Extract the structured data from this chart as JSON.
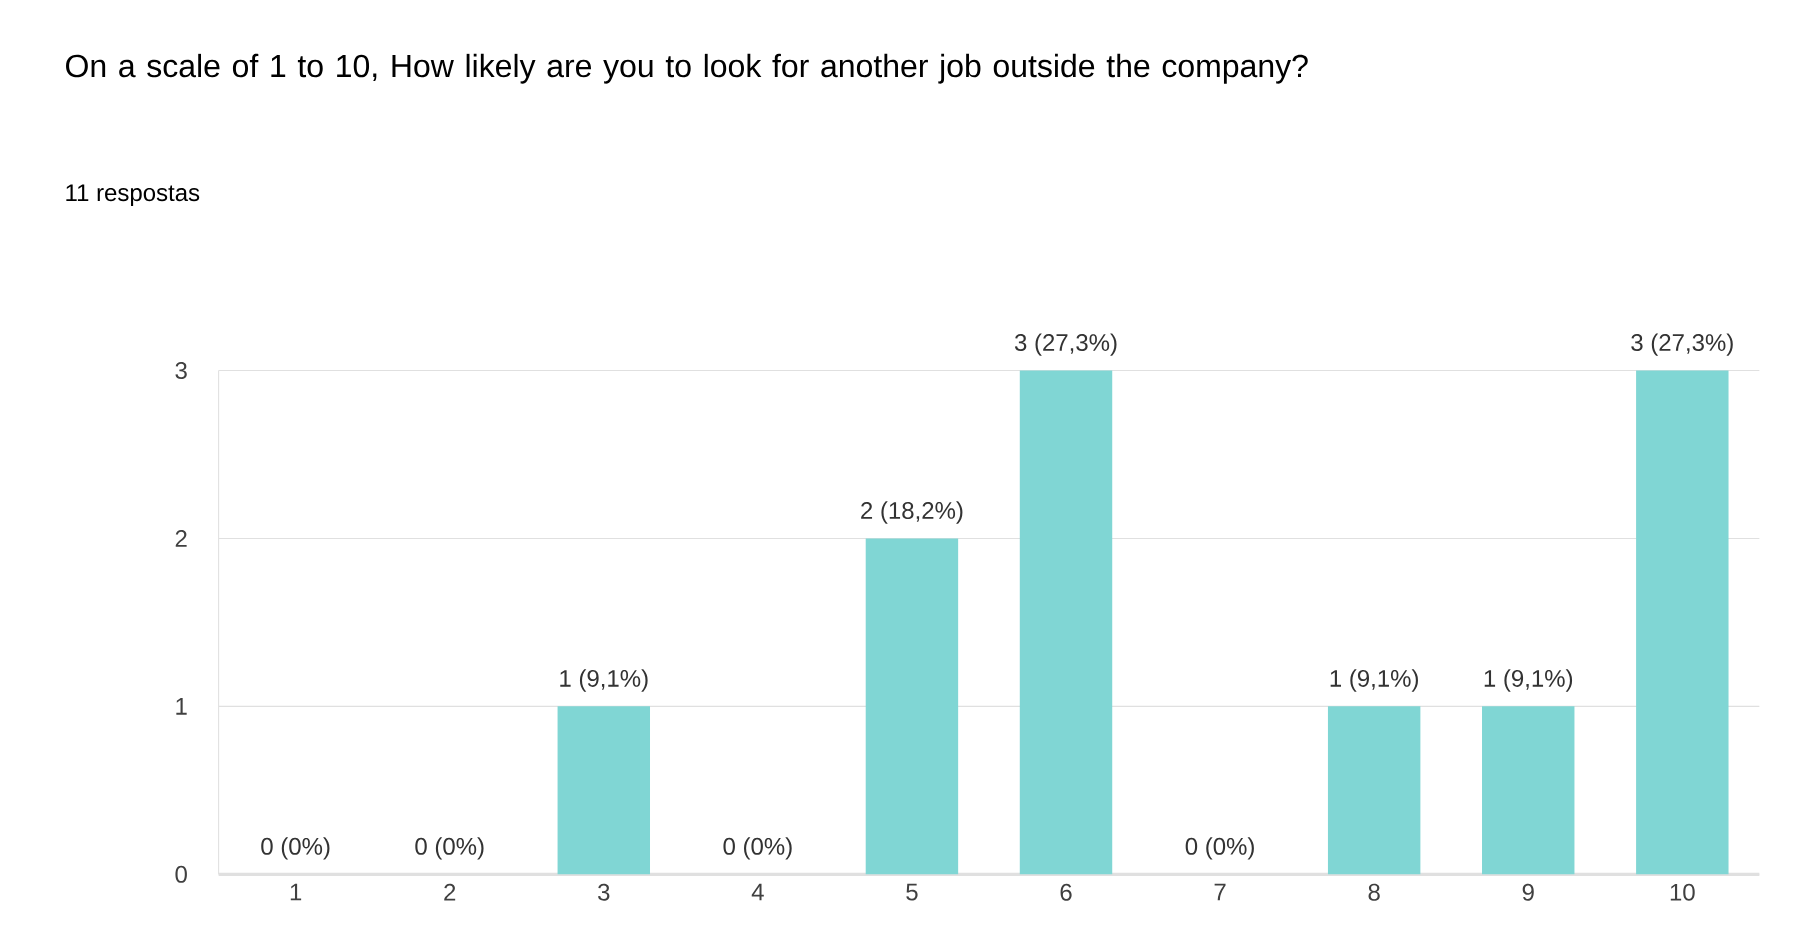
{
  "chart_data": {
    "type": "bar",
    "title": "On a scale of 1 to 10, How likely are you to look for another job outside the company?",
    "subtitle": "11 respostas",
    "categories": [
      "1",
      "2",
      "3",
      "4",
      "5",
      "6",
      "7",
      "8",
      "9",
      "10"
    ],
    "values": [
      0,
      0,
      1,
      0,
      2,
      3,
      0,
      1,
      1,
      3
    ],
    "value_labels": [
      "0 (0%)",
      "0 (0%)",
      "1 (9,1%)",
      "0 (0%)",
      "2 (18,2%)",
      "3 (27,3%)",
      "0 (0%)",
      "1 (9,1%)",
      "1 (9,1%)",
      "3 (27,3%)"
    ],
    "color": "#80d6d4",
    "ylim": [
      0,
      3
    ],
    "yticks": [
      0,
      1,
      2,
      3
    ],
    "grid": "y"
  }
}
